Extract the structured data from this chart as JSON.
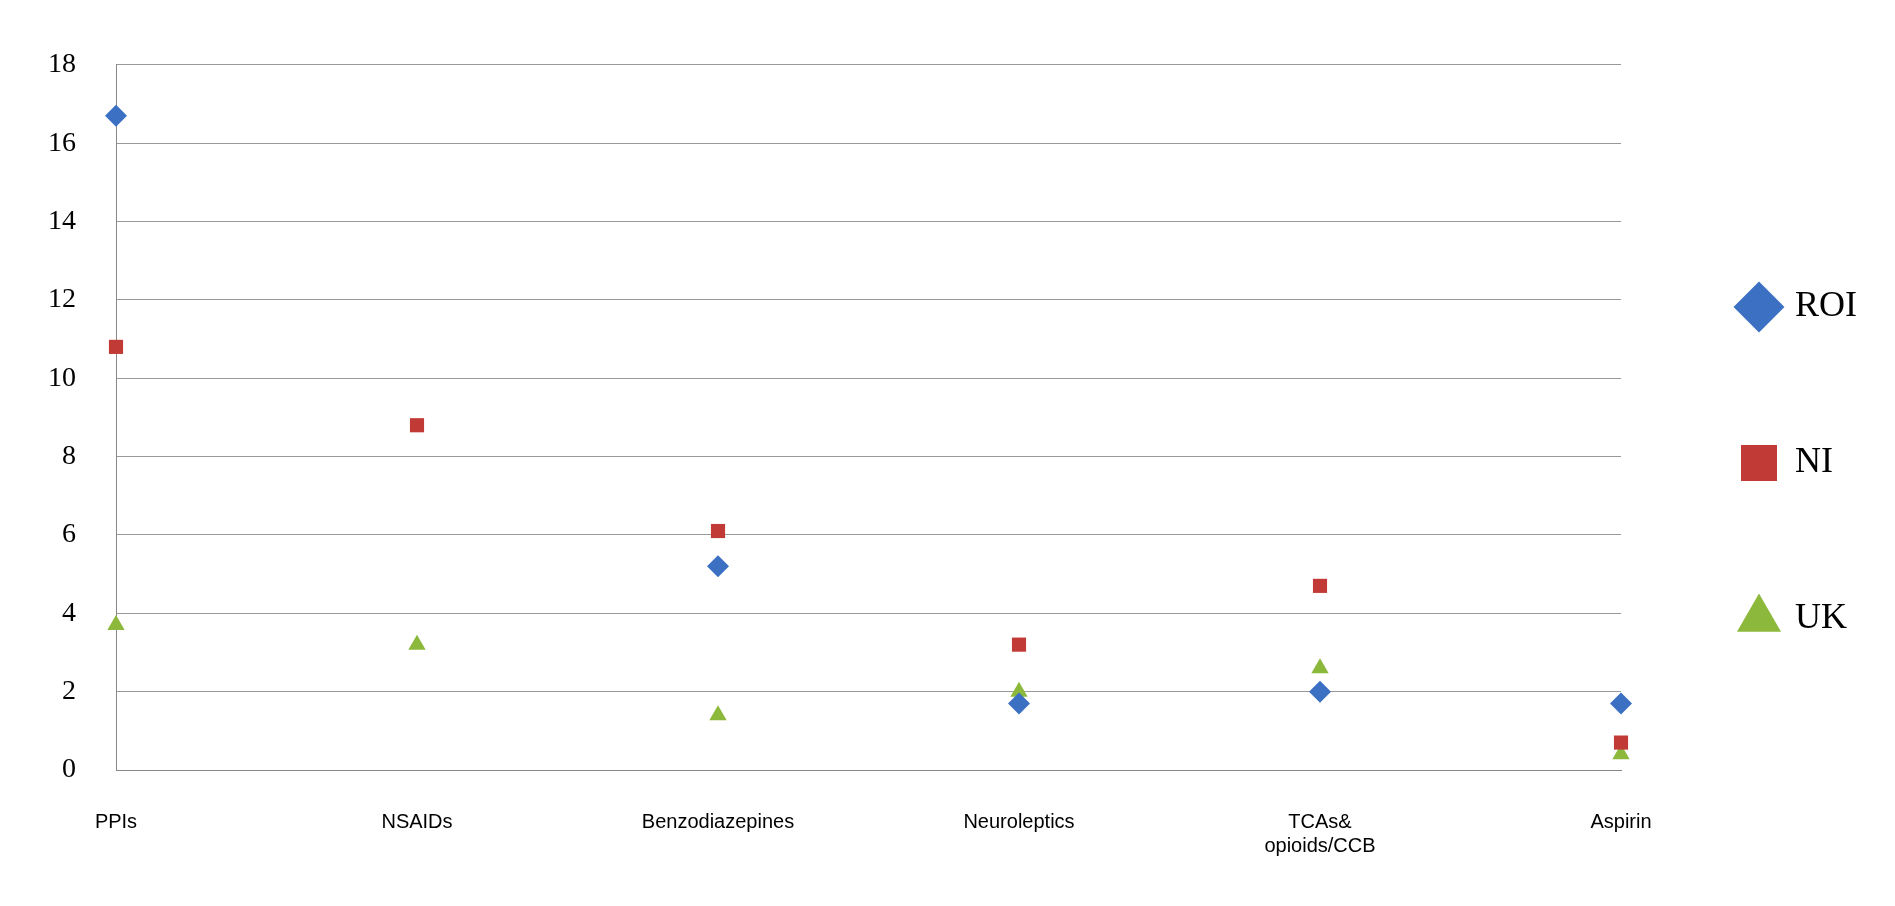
{
  "chart_data": {
    "type": "scatter",
    "categories": [
      "PPIs",
      "NSAIDs",
      "Benzodiazepines",
      "Neuroleptics",
      "TCAs& opioids/CCB",
      "Aspirin"
    ],
    "series": [
      {
        "name": "ROI",
        "color": "#3b70c2",
        "marker": "diamond",
        "values": [
          16.7,
          null,
          5.2,
          1.7,
          2.0,
          1.7
        ]
      },
      {
        "name": "NI",
        "color": "#c23a36",
        "marker": "square",
        "values": [
          10.8,
          8.8,
          6.1,
          3.2,
          4.7,
          0.7
        ]
      },
      {
        "name": "UK",
        "color": "#8cb83c",
        "marker": "triangle",
        "values": [
          3.7,
          3.2,
          1.4,
          2.0,
          2.6,
          0.4
        ]
      }
    ],
    "ylim": [
      0,
      18
    ],
    "yticks": [
      0,
      2,
      4,
      6,
      8,
      10,
      12,
      14,
      16,
      18
    ],
    "grid": "y",
    "legend": "right"
  }
}
